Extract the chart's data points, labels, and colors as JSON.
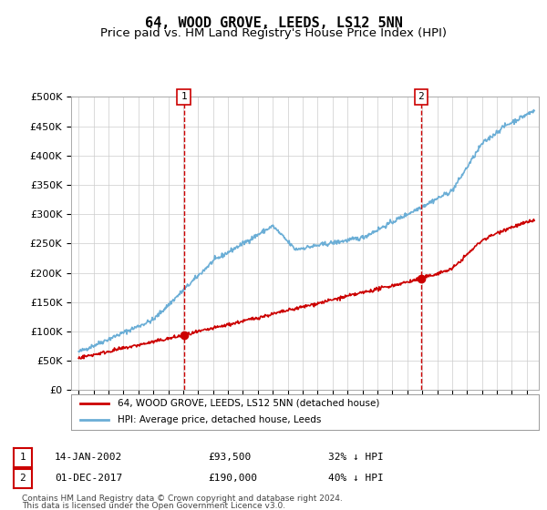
{
  "title": "64, WOOD GROVE, LEEDS, LS12 5NN",
  "subtitle": "Price paid vs. HM Land Registry's House Price Index (HPI)",
  "ylim": [
    0,
    500000
  ],
  "yticks": [
    0,
    50000,
    100000,
    150000,
    200000,
    250000,
    300000,
    350000,
    400000,
    450000,
    500000
  ],
  "ytick_labels": [
    "£0",
    "£50K",
    "£100K",
    "£150K",
    "£200K",
    "£250K",
    "£300K",
    "£350K",
    "£400K",
    "£450K",
    "£500K"
  ],
  "hpi_color": "#6baed6",
  "price_color": "#cc0000",
  "vline_color": "#cc0000",
  "bg_color": "#ffffff",
  "grid_color": "#cccccc",
  "sale1_date_num": 2002.04,
  "sale1_price": 93500,
  "sale2_date_num": 2017.92,
  "sale2_price": 190000,
  "legend_label_price": "64, WOOD GROVE, LEEDS, LS12 5NN (detached house)",
  "legend_label_hpi": "HPI: Average price, detached house, Leeds",
  "sale1_date_str": "14-JAN-2002",
  "sale1_price_str": "£93,500",
  "sale1_hpi_str": "32% ↓ HPI",
  "sale2_date_str": "01-DEC-2017",
  "sale2_price_str": "£190,000",
  "sale2_hpi_str": "40% ↓ HPI",
  "footnote1": "Contains HM Land Registry data © Crown copyright and database right 2024.",
  "footnote2": "This data is licensed under the Open Government Licence v3.0.",
  "title_fontsize": 11,
  "subtitle_fontsize": 9.5,
  "tick_fontsize": 8
}
